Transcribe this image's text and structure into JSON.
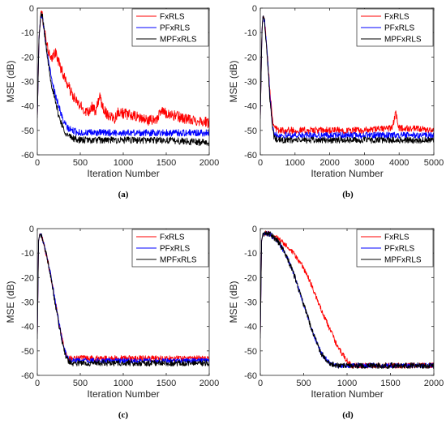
{
  "colors": {
    "FxRLS": "#ff0000",
    "PFxRLS": "#0000ff",
    "MPFxRLS": "#000000"
  },
  "chart_data": [
    {
      "panel": "a",
      "caption": "(a)",
      "type": "line",
      "xlabel": "Iteration Number",
      "ylabel": "MSE (dB)",
      "xlim": [
        0,
        2000
      ],
      "ylim": [
        -60,
        0
      ],
      "xticks": [
        0,
        500,
        1000,
        1500,
        2000
      ],
      "yticks": [
        0,
        -10,
        -20,
        -30,
        -40,
        -50,
        -60
      ],
      "legend_loc": "top-right",
      "series": [
        {
          "name": "FxRLS",
          "color": "#ff0000",
          "points": [
            [
              0,
              -45
            ],
            [
              20,
              -12
            ],
            [
              40,
              -3
            ],
            [
              60,
              -3
            ],
            [
              80,
              -8
            ],
            [
              100,
              -12
            ],
            [
              120,
              -16
            ],
            [
              140,
              -19
            ],
            [
              160,
              -22
            ],
            [
              180,
              -20
            ],
            [
              200,
              -18
            ],
            [
              220,
              -19
            ],
            [
              250,
              -22
            ],
            [
              300,
              -27
            ],
            [
              350,
              -31
            ],
            [
              400,
              -35
            ],
            [
              450,
              -38
            ],
            [
              500,
              -40
            ],
            [
              550,
              -42
            ],
            [
              600,
              -42
            ],
            [
              640,
              -40
            ],
            [
              680,
              -43
            ],
            [
              720,
              -36
            ],
            [
              760,
              -40
            ],
            [
              800,
              -43
            ],
            [
              850,
              -44
            ],
            [
              900,
              -45
            ],
            [
              950,
              -42
            ],
            [
              1000,
              -43
            ],
            [
              1100,
              -44
            ],
            [
              1200,
              -45
            ],
            [
              1300,
              -46
            ],
            [
              1400,
              -45
            ],
            [
              1450,
              -42
            ],
            [
              1500,
              -43
            ],
            [
              1600,
              -44
            ],
            [
              1700,
              -45
            ],
            [
              1800,
              -46
            ],
            [
              1900,
              -46
            ],
            [
              2000,
              -47
            ]
          ],
          "jitter": 2.2
        },
        {
          "name": "PFxRLS",
          "color": "#0000ff",
          "points": [
            [
              0,
              -45
            ],
            [
              20,
              -12
            ],
            [
              40,
              -3
            ],
            [
              60,
              -3
            ],
            [
              80,
              -9
            ],
            [
              100,
              -15
            ],
            [
              130,
              -22
            ],
            [
              160,
              -28
            ],
            [
              200,
              -34
            ],
            [
              250,
              -40
            ],
            [
              300,
              -46
            ],
            [
              350,
              -49
            ],
            [
              400,
              -50
            ],
            [
              500,
              -51
            ],
            [
              700,
              -51
            ],
            [
              1000,
              -51
            ],
            [
              1500,
              -51
            ],
            [
              2000,
              -51
            ]
          ],
          "jitter": 1.4
        },
        {
          "name": "MPFxRLS",
          "color": "#000000",
          "points": [
            [
              0,
              -45
            ],
            [
              20,
              -12
            ],
            [
              40,
              -3
            ],
            [
              60,
              -3
            ],
            [
              80,
              -9
            ],
            [
              100,
              -15
            ],
            [
              130,
              -23
            ],
            [
              160,
              -30
            ],
            [
              200,
              -37
            ],
            [
              250,
              -44
            ],
            [
              300,
              -49
            ],
            [
              350,
              -52
            ],
            [
              400,
              -53
            ],
            [
              500,
              -54
            ],
            [
              700,
              -54
            ],
            [
              1000,
              -54
            ],
            [
              1500,
              -54
            ],
            [
              2000,
              -55
            ]
          ],
          "jitter": 1.4
        }
      ]
    },
    {
      "panel": "b",
      "caption": "(b)",
      "type": "line",
      "xlabel": "Iteration Number",
      "ylabel": "MSE (dB)",
      "xlim": [
        0,
        5000
      ],
      "ylim": [
        -60,
        0
      ],
      "xticks": [
        0,
        1000,
        2000,
        3000,
        4000,
        5000
      ],
      "yticks": [
        0,
        -10,
        -20,
        -30,
        -40,
        -50,
        -60
      ],
      "legend_loc": "top-right",
      "series": [
        {
          "name": "FxRLS",
          "color": "#ff0000",
          "points": [
            [
              0,
              -45
            ],
            [
              50,
              -8
            ],
            [
              80,
              -3
            ],
            [
              120,
              -5
            ],
            [
              200,
              -18
            ],
            [
              280,
              -34
            ],
            [
              350,
              -45
            ],
            [
              400,
              -48
            ],
            [
              500,
              -50
            ],
            [
              1000,
              -50
            ],
            [
              2000,
              -50
            ],
            [
              3000,
              -50
            ],
            [
              3800,
              -49
            ],
            [
              3900,
              -43
            ],
            [
              4000,
              -49
            ],
            [
              5000,
              -50
            ]
          ],
          "jitter": 1.4
        },
        {
          "name": "PFxRLS",
          "color": "#0000ff",
          "points": [
            [
              0,
              -45
            ],
            [
              50,
              -8
            ],
            [
              80,
              -3
            ],
            [
              120,
              -5
            ],
            [
              200,
              -19
            ],
            [
              280,
              -36
            ],
            [
              350,
              -47
            ],
            [
              400,
              -51
            ],
            [
              500,
              -52
            ],
            [
              1000,
              -52
            ],
            [
              2000,
              -52
            ],
            [
              3000,
              -52
            ],
            [
              4000,
              -52
            ],
            [
              5000,
              -52
            ]
          ],
          "jitter": 1.3
        },
        {
          "name": "MPFxRLS",
          "color": "#000000",
          "points": [
            [
              0,
              -45
            ],
            [
              50,
              -8
            ],
            [
              80,
              -3
            ],
            [
              120,
              -5
            ],
            [
              200,
              -20
            ],
            [
              280,
              -38
            ],
            [
              350,
              -49
            ],
            [
              400,
              -53
            ],
            [
              500,
              -54
            ],
            [
              1000,
              -54
            ],
            [
              2000,
              -54
            ],
            [
              3000,
              -54
            ],
            [
              4000,
              -54
            ],
            [
              5000,
              -54
            ]
          ],
          "jitter": 1.3
        }
      ]
    },
    {
      "panel": "c",
      "caption": "(c)",
      "type": "line",
      "xlabel": "Iteration Number",
      "ylabel": "MSE (dB)",
      "xlim": [
        0,
        2000
      ],
      "ylim": [
        -60,
        0
      ],
      "xticks": [
        0,
        500,
        1000,
        1500,
        2000
      ],
      "yticks": [
        0,
        -10,
        -20,
        -30,
        -40,
        -50,
        -60
      ],
      "legend_loc": "top-right",
      "series": [
        {
          "name": "FxRLS",
          "color": "#ff0000",
          "points": [
            [
              0,
              -45
            ],
            [
              15,
              -5
            ],
            [
              30,
              -2
            ],
            [
              60,
              -4
            ],
            [
              100,
              -10
            ],
            [
              150,
              -18
            ],
            [
              200,
              -28
            ],
            [
              250,
              -38
            ],
            [
              300,
              -47
            ],
            [
              330,
              -51
            ],
            [
              360,
              -53
            ],
            [
              400,
              -53
            ],
            [
              600,
              -53
            ],
            [
              1000,
              -53
            ],
            [
              1500,
              -53
            ],
            [
              2000,
              -53
            ]
          ],
          "jitter": 1.1
        },
        {
          "name": "PFxRLS",
          "color": "#0000ff",
          "points": [
            [
              0,
              -45
            ],
            [
              15,
              -5
            ],
            [
              30,
              -2
            ],
            [
              60,
              -4
            ],
            [
              100,
              -10
            ],
            [
              150,
              -18
            ],
            [
              200,
              -28
            ],
            [
              250,
              -38
            ],
            [
              300,
              -47
            ],
            [
              330,
              -51
            ],
            [
              360,
              -53
            ],
            [
              400,
              -54
            ],
            [
              600,
              -54
            ],
            [
              1000,
              -54
            ],
            [
              1500,
              -54
            ],
            [
              2000,
              -54
            ]
          ],
          "jitter": 1.0
        },
        {
          "name": "MPFxRLS",
          "color": "#000000",
          "points": [
            [
              0,
              -45
            ],
            [
              15,
              -5
            ],
            [
              30,
              -2
            ],
            [
              60,
              -4
            ],
            [
              100,
              -10
            ],
            [
              150,
              -18
            ],
            [
              200,
              -29
            ],
            [
              250,
              -39
            ],
            [
              300,
              -48
            ],
            [
              330,
              -52
            ],
            [
              360,
              -54
            ],
            [
              400,
              -55
            ],
            [
              600,
              -55
            ],
            [
              1000,
              -55
            ],
            [
              1500,
              -55
            ],
            [
              2000,
              -55
            ]
          ],
          "jitter": 1.2
        }
      ]
    },
    {
      "panel": "d",
      "caption": "(d)",
      "type": "line",
      "xlabel": "Iteration Number",
      "ylabel": "MSE (dB)",
      "xlim": [
        0,
        2000
      ],
      "ylim": [
        -60,
        0
      ],
      "xticks": [
        0,
        500,
        1000,
        1500,
        2000
      ],
      "yticks": [
        0,
        -10,
        -20,
        -30,
        -40,
        -50,
        -60
      ],
      "legend_loc": "top-right",
      "series": [
        {
          "name": "FxRLS",
          "color": "#ff0000",
          "points": [
            [
              0,
              -45
            ],
            [
              15,
              -5
            ],
            [
              30,
              -2
            ],
            [
              100,
              -2
            ],
            [
              200,
              -4
            ],
            [
              300,
              -7
            ],
            [
              400,
              -11
            ],
            [
              500,
              -16
            ],
            [
              600,
              -24
            ],
            [
              700,
              -33
            ],
            [
              800,
              -41
            ],
            [
              900,
              -49
            ],
            [
              1000,
              -54
            ],
            [
              1050,
              -56
            ],
            [
              1200,
              -56
            ],
            [
              1500,
              -56
            ],
            [
              2000,
              -56
            ]
          ],
          "jitter": 1.1
        },
        {
          "name": "PFxRLS",
          "color": "#0000ff",
          "points": [
            [
              0,
              -45
            ],
            [
              15,
              -5
            ],
            [
              30,
              -2
            ],
            [
              100,
              -2
            ],
            [
              200,
              -5
            ],
            [
              300,
              -11
            ],
            [
              400,
              -20
            ],
            [
              500,
              -31
            ],
            [
              600,
              -42
            ],
            [
              700,
              -51
            ],
            [
              800,
              -55
            ],
            [
              900,
              -56
            ],
            [
              1200,
              -56
            ],
            [
              1500,
              -56
            ],
            [
              2000,
              -56
            ]
          ],
          "jitter": 1.0
        },
        {
          "name": "MPFxRLS",
          "color": "#000000",
          "points": [
            [
              0,
              -45
            ],
            [
              15,
              -5
            ],
            [
              30,
              -2
            ],
            [
              100,
              -2
            ],
            [
              200,
              -5
            ],
            [
              300,
              -11
            ],
            [
              400,
              -20
            ],
            [
              500,
              -31
            ],
            [
              600,
              -42
            ],
            [
              700,
              -51
            ],
            [
              800,
              -55
            ],
            [
              900,
              -56
            ],
            [
              1200,
              -56
            ],
            [
              1500,
              -56
            ],
            [
              2000,
              -56
            ]
          ],
          "jitter": 1.2
        }
      ]
    }
  ]
}
